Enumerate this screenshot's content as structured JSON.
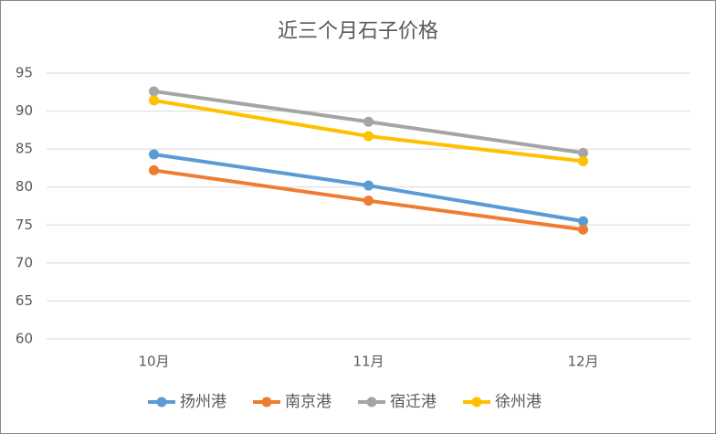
{
  "chart_data": {
    "type": "line",
    "title": "近三个月石子价格",
    "categories": [
      "10月",
      "11月",
      "12月"
    ],
    "series": [
      {
        "name": "扬州港",
        "color": "#5b9bd5",
        "values": [
          84.3,
          80.2,
          75.5
        ]
      },
      {
        "name": "南京港",
        "color": "#ed7d31",
        "values": [
          82.2,
          78.2,
          74.4
        ]
      },
      {
        "name": "宿迁港",
        "color": "#a5a5a5",
        "values": [
          92.6,
          88.6,
          84.5
        ]
      },
      {
        "name": "徐州港",
        "color": "#ffc000",
        "values": [
          91.4,
          86.7,
          83.4
        ]
      }
    ],
    "ylim": [
      60,
      95
    ],
    "yticks": [
      60,
      65,
      70,
      75,
      80,
      85,
      90,
      95
    ],
    "grid": true,
    "legend": "bottom"
  }
}
